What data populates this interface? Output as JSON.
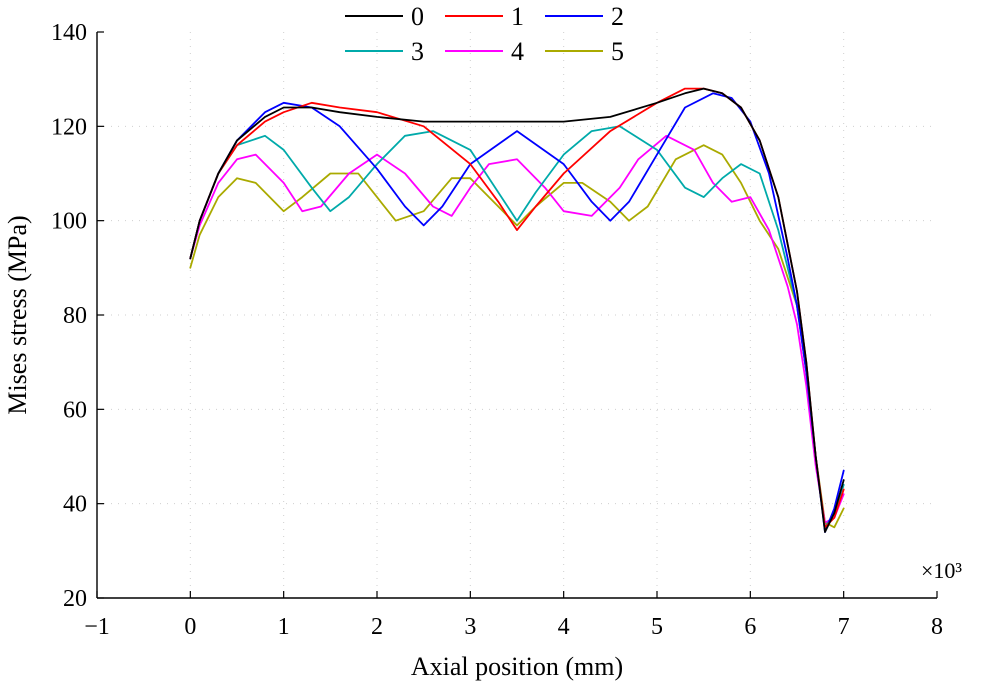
{
  "chart_data": {
    "type": "line",
    "xlabel": "Axial position (mm)",
    "ylabel": "Mises stress (MPa)",
    "x_multiplier": "×10³",
    "xlim": [
      -1,
      8
    ],
    "ylim": [
      20,
      140
    ],
    "x_ticks": [
      "−1",
      "0",
      "1",
      "2",
      "3",
      "4",
      "5",
      "6",
      "7",
      "8"
    ],
    "y_ticks": [
      "20",
      "40",
      "60",
      "80",
      "100",
      "120",
      "140"
    ],
    "grid": "light dotted",
    "legend_placement": "top",
    "series": [
      {
        "name": "0",
        "color": "#000000",
        "x": [
          0,
          0.1,
          0.3,
          0.5,
          0.8,
          1.0,
          1.3,
          1.6,
          2.0,
          2.5,
          3.0,
          3.5,
          4.0,
          4.5,
          5.0,
          5.3,
          5.5,
          5.7,
          5.9,
          6.1,
          6.3,
          6.5,
          6.6,
          6.7,
          6.8,
          6.9,
          7.0
        ],
        "y": [
          92,
          100,
          110,
          117,
          122,
          124,
          124,
          123,
          122,
          121,
          121,
          121,
          121,
          122,
          125,
          127,
          128,
          127,
          124,
          117,
          105,
          85,
          70,
          50,
          34,
          38,
          45
        ]
      },
      {
        "name": "1",
        "color": "#ff0000",
        "x": [
          0,
          0.1,
          0.3,
          0.5,
          0.8,
          1.0,
          1.3,
          1.6,
          2.0,
          2.5,
          3.0,
          3.3,
          3.5,
          3.7,
          4.0,
          4.5,
          5.0,
          5.3,
          5.5,
          5.7,
          5.9,
          6.1,
          6.3,
          6.5,
          6.6,
          6.7,
          6.8,
          6.9,
          7.0
        ],
        "y": [
          92,
          100,
          110,
          116,
          121,
          123,
          125,
          124,
          123,
          120,
          112,
          104,
          98,
          103,
          110,
          119,
          125,
          128,
          128,
          127,
          124,
          117,
          105,
          85,
          70,
          50,
          35,
          37,
          43
        ]
      },
      {
        "name": "2",
        "color": "#0000ff",
        "x": [
          0,
          0.1,
          0.3,
          0.5,
          0.8,
          1.0,
          1.3,
          1.6,
          2.0,
          2.3,
          2.5,
          2.7,
          3.0,
          3.5,
          4.0,
          4.3,
          4.5,
          4.7,
          5.0,
          5.3,
          5.6,
          5.8,
          6.0,
          6.2,
          6.4,
          6.5,
          6.6,
          6.7,
          6.8,
          6.9,
          7.0
        ],
        "y": [
          92,
          100,
          110,
          117,
          123,
          125,
          124,
          120,
          111,
          103,
          99,
          103,
          112,
          119,
          112,
          104,
          100,
          104,
          114,
          124,
          127,
          126,
          121,
          110,
          92,
          82,
          68,
          50,
          34,
          39,
          47
        ]
      },
      {
        "name": "3",
        "color": "#00aaaa",
        "x": [
          0,
          0.1,
          0.3,
          0.5,
          0.8,
          1.0,
          1.3,
          1.5,
          1.7,
          2.0,
          2.3,
          2.6,
          3.0,
          3.3,
          3.5,
          3.7,
          4.0,
          4.3,
          4.6,
          5.0,
          5.3,
          5.5,
          5.7,
          5.9,
          6.1,
          6.3,
          6.5,
          6.6,
          6.7,
          6.8,
          6.9,
          7.0
        ],
        "y": [
          92,
          100,
          110,
          116,
          118,
          115,
          107,
          102,
          105,
          112,
          118,
          119,
          115,
          106,
          100,
          106,
          114,
          119,
          120,
          115,
          107,
          105,
          109,
          112,
          110,
          98,
          82,
          68,
          50,
          35,
          38,
          44
        ]
      },
      {
        "name": "4",
        "color": "#ff00ff",
        "x": [
          0,
          0.1,
          0.3,
          0.5,
          0.7,
          1.0,
          1.2,
          1.4,
          1.7,
          2.0,
          2.3,
          2.6,
          2.8,
          3.0,
          3.2,
          3.5,
          3.8,
          4.0,
          4.3,
          4.6,
          4.8,
          5.1,
          5.4,
          5.6,
          5.8,
          6.0,
          6.2,
          6.4,
          6.5,
          6.6,
          6.7,
          6.8,
          6.9,
          7.0
        ],
        "y": [
          92,
          99,
          108,
          113,
          114,
          108,
          102,
          103,
          110,
          114,
          110,
          103,
          101,
          107,
          112,
          113,
          107,
          102,
          101,
          107,
          113,
          118,
          115,
          108,
          104,
          105,
          98,
          86,
          78,
          65,
          48,
          36,
          37,
          42
        ]
      },
      {
        "name": "5",
        "color": "#aaaa00",
        "x": [
          0,
          0.1,
          0.3,
          0.5,
          0.7,
          1.0,
          1.2,
          1.5,
          1.8,
          2.0,
          2.2,
          2.5,
          2.8,
          3.0,
          3.2,
          3.5,
          3.7,
          4.0,
          4.2,
          4.5,
          4.7,
          4.9,
          5.2,
          5.5,
          5.7,
          5.9,
          6.1,
          6.3,
          6.5,
          6.6,
          6.7,
          6.8,
          6.9,
          7.0
        ],
        "y": [
          90,
          97,
          105,
          109,
          108,
          102,
          105,
          110,
          110,
          105,
          100,
          102,
          109,
          109,
          105,
          99,
          103,
          108,
          108,
          104,
          100,
          103,
          113,
          116,
          114,
          108,
          100,
          94,
          82,
          68,
          50,
          36,
          35,
          39
        ]
      }
    ]
  }
}
